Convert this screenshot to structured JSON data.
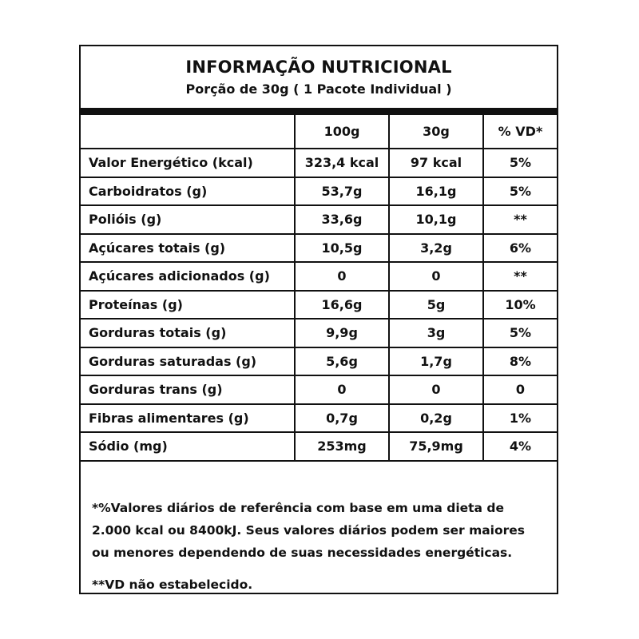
{
  "header": {
    "title": "INFORMAÇÃO NUTRICIONAL",
    "subtitle": "Porção de 30g ( 1 Pacote Individual )"
  },
  "table": {
    "columns": [
      "",
      "100g",
      "30g",
      "% VD*"
    ],
    "rows": [
      [
        "Valor Energético (kcal)",
        "323,4 kcal",
        "97 kcal",
        "5%"
      ],
      [
        "Carboidratos (g)",
        "53,7g",
        "16,1g",
        "5%"
      ],
      [
        "Polióis (g)",
        "33,6g",
        "10,1g",
        "**"
      ],
      [
        "Açúcares totais (g)",
        "10,5g",
        "3,2g",
        "6%"
      ],
      [
        "Açúcares adicionados (g)",
        "0",
        "0",
        "**"
      ],
      [
        "Proteínas (g)",
        "16,6g",
        "5g",
        "10%"
      ],
      [
        "Gorduras totais (g)",
        "9,9g",
        "3g",
        "5%"
      ],
      [
        "Gorduras saturadas (g)",
        "5,6g",
        "1,7g",
        "8%"
      ],
      [
        "Gorduras trans (g)",
        "0",
        "0",
        "0"
      ],
      [
        "Fibras alimentares (g)",
        "0,7g",
        "0,2g",
        "1%"
      ],
      [
        "Sódio (mg)",
        "253mg",
        "75,9mg",
        "4%"
      ]
    ]
  },
  "footer": {
    "note_lines": [
      "*%Valores diários de referência com base em uma dieta de",
      "2.000 kcal ou 8400kJ. Seus valores diários podem ser maiores",
      "ou menores dependendo de suas necessidades energéticas."
    ],
    "note2": "**VD não estabelecido."
  }
}
